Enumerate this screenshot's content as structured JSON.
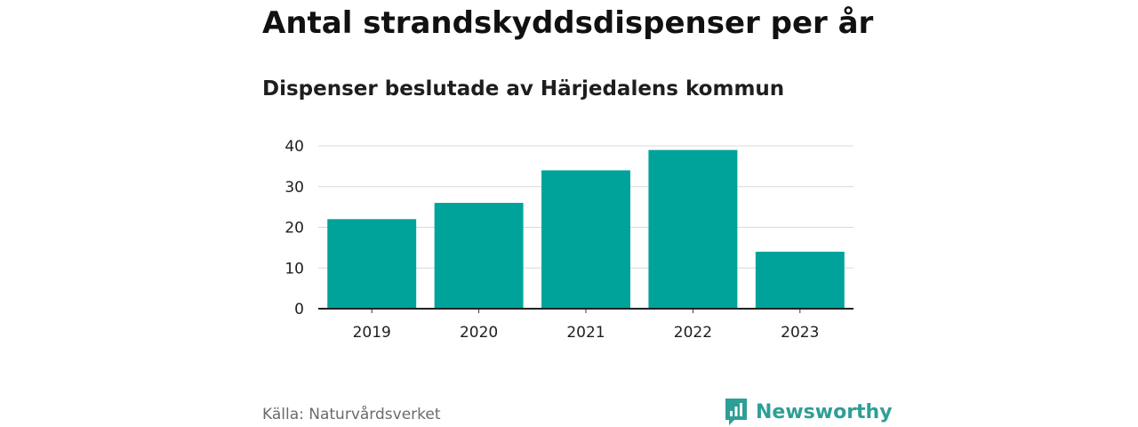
{
  "chart_data": {
    "type": "bar",
    "title": "Antal strandskyddsdispenser per år",
    "subtitle": "Dispenser beslutade av Härjedalens kommun",
    "categories": [
      "2019",
      "2020",
      "2021",
      "2022",
      "2023"
    ],
    "values": [
      22,
      26,
      34,
      39,
      14
    ],
    "xlabel": "",
    "ylabel": "",
    "ylim": [
      0,
      40
    ],
    "yticks": [
      "0",
      "10",
      "20",
      "30",
      "40"
    ],
    "grid": true,
    "bar_color": "#00a39a"
  },
  "footer": {
    "source": "Källa: Naturvårdsverket",
    "brand_name": "Newsworthy",
    "brand_color": "#2e9f96"
  }
}
